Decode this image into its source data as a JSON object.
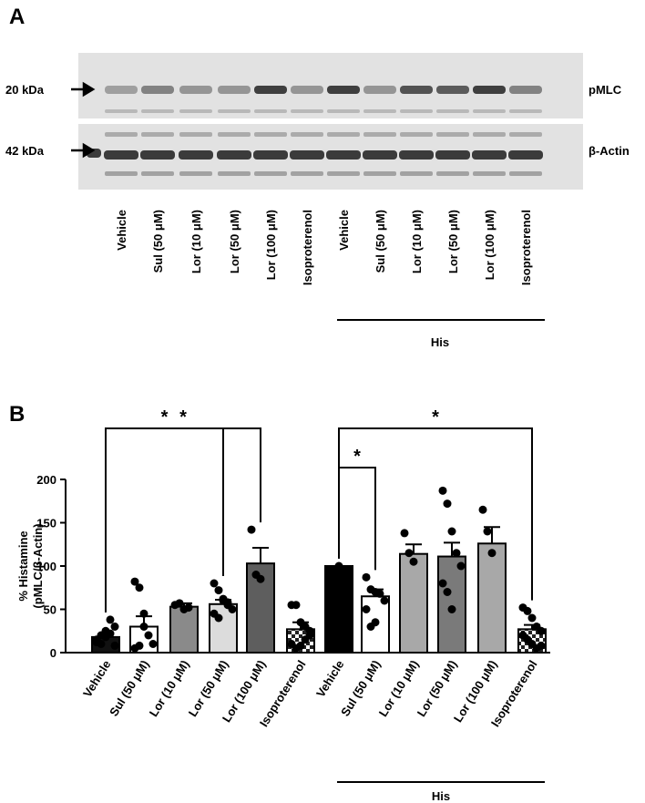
{
  "panel_a": {
    "label": "A",
    "markers": [
      "20 kDa",
      "42 kDa"
    ],
    "blots": [
      "pMLC",
      "β-Actin"
    ],
    "lanes": [
      "Vehicle",
      "Sul (50 μM)",
      "Lor (10 μM)",
      "Lor (50 μM)",
      "Lor (100 μM)",
      "Isoproterenol",
      "Vehicle",
      "Sul (50 μM)",
      "Lor (10 μM)",
      "Lor (50 μM)",
      "Lor (100 μM)",
      "Isoproterenol"
    ],
    "group_label": "His"
  },
  "chart_data": {
    "type": "bar",
    "label": "B",
    "y_label": [
      "% Histamine",
      "(pMLC/β-Actin)"
    ],
    "categories": [
      "Vehicle",
      "Sul (50 μM)",
      "Lor (10 μM)",
      "Lor (50 μM)",
      "Lor (100 μM)",
      "Isoproterenol",
      "Vehicle",
      "Sul (50 μM)",
      "Lor (10 μM)",
      "Lor (50 μM)",
      "Lor (100 μM)",
      "Isoproterenol"
    ],
    "values": [
      18,
      30,
      53,
      56,
      103,
      27,
      100,
      65,
      114,
      111,
      126,
      27
    ],
    "errors": [
      3,
      12,
      4,
      5,
      18,
      8,
      0,
      8,
      11,
      16,
      19,
      5
    ],
    "colors": [
      "#111111",
      "#ffffff",
      "#8a8a8a",
      "#dcdcdc",
      "#5e5e5e",
      "#e4e4e4",
      "#000000",
      "#ffffff",
      "#a8a8a8",
      "#7a7a7a",
      "#a8a8a8",
      "#e4e4e4"
    ],
    "points": [
      [
        15,
        20,
        25,
        38,
        30,
        12,
        10,
        18,
        22,
        8
      ],
      [
        82,
        75,
        45,
        20,
        10,
        5,
        8,
        30
      ],
      [
        55,
        57,
        50,
        52
      ],
      [
        80,
        72,
        60,
        55,
        50,
        45,
        40,
        62,
        58
      ],
      [
        142,
        90,
        85
      ],
      [
        55,
        55,
        35,
        30,
        20,
        10,
        5,
        8,
        15,
        25
      ],
      [
        100
      ],
      [
        87,
        73,
        70,
        68,
        60,
        50,
        30,
        35
      ],
      [
        138,
        115,
        105
      ],
      [
        187,
        172,
        140,
        115,
        100,
        80,
        70,
        50
      ],
      [
        165,
        140,
        115
      ],
      [
        52,
        48,
        40,
        30,
        25,
        20,
        15,
        10,
        5,
        8
      ]
    ],
    "ylim": [
      0,
      200
    ],
    "yticks": [
      0,
      50,
      100,
      150,
      200
    ],
    "annotations": [
      {
        "text": "*",
        "from": 0,
        "to": 4
      },
      {
        "text": "*",
        "from": 0,
        "to": 3
      },
      {
        "text": "*",
        "from": 6,
        "to": 11
      },
      {
        "text": "*",
        "from": 6,
        "to": 7
      }
    ],
    "groups": [
      {
        "label": "His",
        "from": 6,
        "to": 11
      }
    ]
  }
}
